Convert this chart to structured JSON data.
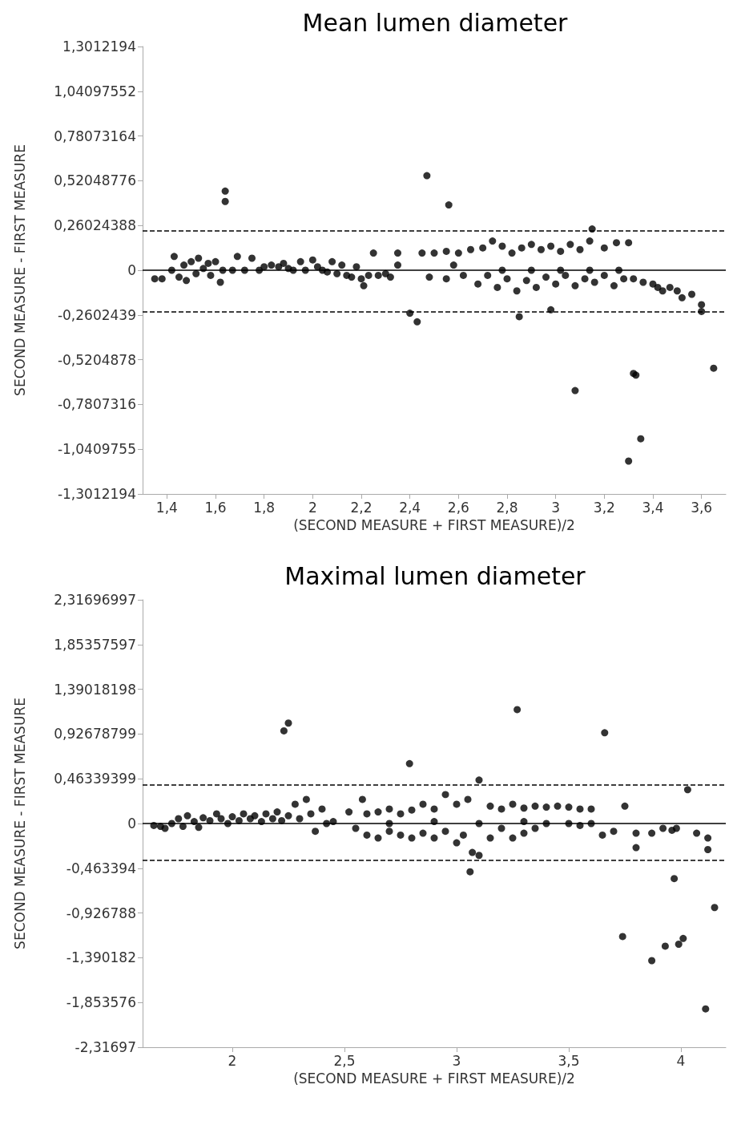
{
  "chart_data": [
    {
      "type": "scatter",
      "title": "Mean lumen diameter",
      "xlabel": "(SECOND MEASURE + FIRST MEASURE)/2",
      "ylabel": "SECOND MEASURE - FIRST MEASURE",
      "marker": "circle",
      "color": "#000000",
      "x": [
        1.35,
        1.38,
        1.42,
        1.43,
        1.45,
        1.47,
        1.48,
        1.5,
        1.52,
        1.53,
        1.55,
        1.57,
        1.58,
        1.6,
        1.62,
        1.63,
        1.64,
        1.64,
        1.67,
        1.69,
        1.72,
        1.75,
        1.78,
        1.8,
        1.83,
        1.86,
        1.88,
        1.9,
        1.92,
        1.95,
        1.97,
        2.0,
        2.02,
        2.04,
        2.06,
        2.08,
        2.1,
        2.12,
        2.14,
        2.16,
        2.18,
        2.2,
        2.21,
        2.23,
        2.25,
        2.27,
        2.3,
        2.32,
        2.35,
        2.35,
        2.4,
        2.43,
        2.47,
        2.56,
        2.45,
        2.5,
        2.55,
        2.6,
        2.65,
        2.48,
        2.55,
        2.62,
        2.58,
        2.7,
        2.74,
        2.78,
        2.82,
        2.86,
        2.9,
        2.94,
        2.98,
        3.02,
        3.06,
        3.1,
        3.14,
        3.15,
        3.2,
        3.25,
        3.3,
        2.68,
        2.72,
        2.76,
        2.8,
        2.84,
        2.85,
        2.88,
        2.92,
        2.98,
        2.96,
        3.0,
        3.04,
        3.08,
        3.12,
        3.16,
        3.2,
        3.24,
        3.28,
        3.32,
        2.78,
        2.9,
        3.02,
        3.14,
        3.26,
        3.36,
        3.4,
        3.42,
        3.44,
        3.47,
        3.5,
        3.52,
        3.56,
        3.6,
        3.6,
        3.65,
        3.08,
        3.32,
        3.33,
        3.35,
        3.3
      ],
      "values": [
        -0.05,
        -0.05,
        0.0,
        0.08,
        -0.04,
        0.03,
        -0.06,
        0.05,
        -0.02,
        0.07,
        0.01,
        0.04,
        -0.03,
        0.05,
        -0.07,
        0.0,
        0.46,
        0.4,
        0.0,
        0.08,
        0.0,
        0.07,
        0.0,
        0.02,
        0.03,
        0.02,
        0.04,
        0.01,
        0.0,
        0.05,
        0.0,
        0.06,
        0.02,
        0.0,
        -0.01,
        0.05,
        -0.02,
        0.03,
        -0.03,
        -0.04,
        0.02,
        -0.05,
        -0.09,
        -0.03,
        0.1,
        -0.03,
        -0.02,
        -0.04,
        0.1,
        0.03,
        -0.25,
        -0.3,
        0.55,
        0.38,
        0.1,
        0.1,
        0.11,
        0.1,
        0.12,
        -0.04,
        -0.05,
        -0.03,
        0.03,
        0.13,
        0.17,
        0.14,
        0.1,
        0.13,
        0.15,
        0.12,
        0.14,
        0.11,
        0.15,
        0.12,
        0.17,
        0.24,
        0.13,
        0.16,
        0.16,
        -0.08,
        -0.03,
        -0.1,
        -0.05,
        -0.12,
        -0.27,
        -0.06,
        -0.1,
        -0.23,
        -0.04,
        -0.08,
        -0.03,
        -0.09,
        -0.05,
        -0.07,
        -0.03,
        -0.09,
        -0.05,
        -0.05,
        0.0,
        0.0,
        0.0,
        0.0,
        0.0,
        -0.07,
        -0.08,
        -0.1,
        -0.12,
        -0.1,
        -0.12,
        -0.16,
        -0.14,
        -0.2,
        -0.24,
        -0.57,
        -0.7,
        -0.6,
        -0.61,
        -0.98,
        -1.11
      ],
      "xlim": [
        1.3,
        3.7
      ],
      "xticks": [
        {
          "value": 1.4,
          "label": "1,4"
        },
        {
          "value": 1.6,
          "label": "1,6"
        },
        {
          "value": 1.8,
          "label": "1,8"
        },
        2,
        {
          "value": 2.2,
          "label": "2,2"
        },
        {
          "value": 2.4,
          "label": "2,4"
        },
        {
          "value": 2.6,
          "label": "2,6"
        },
        {
          "value": 2.8,
          "label": "2,8"
        },
        3,
        {
          "value": 3.2,
          "label": "3,2"
        },
        {
          "value": 3.4,
          "label": "3,4"
        },
        {
          "value": 3.6,
          "label": "3,6"
        }
      ],
      "ylim": [
        -1.3012194,
        1.3012194
      ],
      "yticks": [
        {
          "value": 1.3012194,
          "label": "1,3012194"
        },
        {
          "value": 1.04097552,
          "label": "1,04097552"
        },
        {
          "value": 0.78073164,
          "label": "0,78073164"
        },
        {
          "value": 0.52048776,
          "label": "0,52048776"
        },
        {
          "value": 0.26024388,
          "label": "0,26024388"
        },
        0,
        {
          "value": -0.2602439,
          "label": "-0,2602439"
        },
        {
          "value": -0.5204878,
          "label": "-0,5204878"
        },
        {
          "value": -0.7807316,
          "label": "-0,7807316"
        },
        {
          "value": -1.0409755,
          "label": "-1,0409755"
        },
        {
          "value": -1.3012194,
          "label": "-1,3012194"
        }
      ],
      "ref_lines": [
        {
          "axis": "y",
          "value": 0,
          "line_style": "solid",
          "color": "#000000"
        },
        {
          "axis": "y",
          "value": 0.23,
          "line_style": "dashed",
          "color": "#000000"
        },
        {
          "axis": "y",
          "value": -0.236,
          "line_style": "dashed",
          "color": "#000000"
        }
      ]
    },
    {
      "type": "scatter",
      "title": "Maximal lumen diameter",
      "xlabel": "(SECOND MEASURE + FIRST MEASURE)/2",
      "ylabel": "SECOND MEASURE - FIRST MEASURE",
      "marker": "circle",
      "color": "#000000",
      "x": [
        1.65,
        1.68,
        1.7,
        1.73,
        1.76,
        1.78,
        1.8,
        1.83,
        1.85,
        1.87,
        1.9,
        1.93,
        1.95,
        1.98,
        2.0,
        2.03,
        2.05,
        2.08,
        2.1,
        2.13,
        2.15,
        2.18,
        2.2,
        2.22,
        2.25,
        2.28,
        2.3,
        2.33,
        2.35,
        2.37,
        2.4,
        2.42,
        2.45,
        2.23,
        2.25,
        2.52,
        2.58,
        2.6,
        2.65,
        2.7,
        2.75,
        2.8,
        2.85,
        2.9,
        2.95,
        3.0,
        3.05,
        3.1,
        3.15,
        3.2,
        3.25,
        3.3,
        3.35,
        3.4,
        3.45,
        3.5,
        3.55,
        3.6,
        2.55,
        2.6,
        2.65,
        2.7,
        2.75,
        2.8,
        2.85,
        2.9,
        2.95,
        3.0,
        3.03,
        3.07,
        3.1,
        3.15,
        3.2,
        3.25,
        3.3,
        3.35,
        3.4,
        3.5,
        3.55,
        3.6,
        3.65,
        2.7,
        2.9,
        3.1,
        3.3,
        3.27,
        2.79,
        3.06,
        3.66,
        3.7,
        3.75,
        3.8,
        3.8,
        3.87,
        3.92,
        3.96,
        3.98,
        4.03,
        4.07,
        4.12,
        4.12,
        4.15,
        3.97,
        3.74,
        3.87,
        3.93,
        3.99,
        4.01,
        4.11
      ],
      "values": [
        -0.02,
        -0.03,
        -0.05,
        0.0,
        0.05,
        -0.03,
        0.08,
        0.02,
        -0.04,
        0.06,
        0.03,
        0.1,
        0.05,
        0.0,
        0.07,
        0.03,
        0.1,
        0.05,
        0.08,
        0.02,
        0.1,
        0.05,
        0.12,
        0.03,
        0.08,
        0.2,
        0.05,
        0.25,
        0.1,
        -0.08,
        0.15,
        0.0,
        0.02,
        0.96,
        1.04,
        0.12,
        0.25,
        0.1,
        0.12,
        0.15,
        0.1,
        0.14,
        0.2,
        0.15,
        0.3,
        0.2,
        0.25,
        0.45,
        0.18,
        0.15,
        0.2,
        0.16,
        0.18,
        0.17,
        0.18,
        0.17,
        0.15,
        0.15,
        -0.05,
        -0.12,
        -0.15,
        -0.08,
        -0.12,
        -0.15,
        -0.1,
        -0.15,
        -0.08,
        -0.2,
        -0.12,
        -0.3,
        -0.33,
        -0.15,
        -0.05,
        -0.15,
        -0.1,
        -0.05,
        0.0,
        0.0,
        -0.02,
        0.0,
        -0.12,
        0.0,
        0.02,
        0.0,
        0.02,
        1.18,
        0.62,
        -0.5,
        0.94,
        -0.08,
        0.18,
        -0.25,
        -0.1,
        -0.1,
        -0.05,
        -0.07,
        -0.05,
        0.35,
        -0.1,
        -0.15,
        -0.27,
        -0.87,
        -0.57,
        -1.17,
        -1.42,
        -1.27,
        -1.25,
        -1.19,
        -1.92
      ],
      "xlim": [
        1.6,
        4.2
      ],
      "xticks": [
        2,
        {
          "value": 2.5,
          "label": "2,5"
        },
        3,
        {
          "value": 3.5,
          "label": "3,5"
        },
        4
      ],
      "ylim": [
        -2.31697,
        2.31696997
      ],
      "yticks": [
        {
          "value": 2.31696997,
          "label": "2,31696997"
        },
        {
          "value": 1.85357597,
          "label": "1,85357597"
        },
        {
          "value": 1.39018198,
          "label": "1,39018198"
        },
        {
          "value": 0.92678799,
          "label": "0,92678799"
        },
        {
          "value": 0.46339399,
          "label": "0,46339399"
        },
        0,
        {
          "value": -0.463394,
          "label": "-0,463394"
        },
        {
          "value": -0.926788,
          "label": "-0,926788"
        },
        {
          "value": -1.390182,
          "label": "-1,390182"
        },
        {
          "value": -1.853576,
          "label": "-1,853576"
        },
        {
          "value": -2.31697,
          "label": "-2,31697"
        }
      ],
      "ref_lines": [
        {
          "axis": "y",
          "value": 0,
          "line_style": "solid",
          "color": "#000000"
        },
        {
          "axis": "y",
          "value": 0.396,
          "line_style": "dashed",
          "color": "#000000"
        },
        {
          "axis": "y",
          "value": -0.379,
          "line_style": "dashed",
          "color": "#000000"
        }
      ]
    }
  ]
}
